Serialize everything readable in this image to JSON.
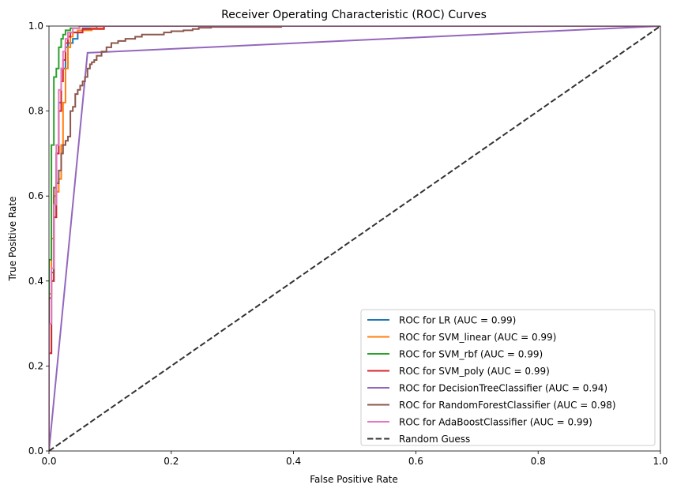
{
  "chart_data": {
    "type": "line",
    "title": "Receiver Operating Characteristic (ROC) Curves",
    "xlabel": "False Positive Rate",
    "ylabel": "True Positive Rate",
    "xlim": [
      0.0,
      1.0
    ],
    "ylim": [
      0.0,
      1.0
    ],
    "xticks": [
      "0.0",
      "0.2",
      "0.4",
      "0.6",
      "0.8",
      "1.0"
    ],
    "yticks": [
      "0.0",
      "0.2",
      "0.4",
      "0.6",
      "0.8",
      "1.0"
    ],
    "grid": false,
    "legend_position": "lower-right",
    "series": [
      {
        "name": "ROC for LR (AUC = 0.99)",
        "color": "#1f77b4",
        "style": "solid",
        "x": [
          0.0,
          0.0,
          0.004,
          0.004,
          0.008,
          0.008,
          0.012,
          0.012,
          0.016,
          0.016,
          0.02,
          0.02,
          0.027,
          0.027,
          0.031,
          0.031,
          0.039,
          0.039,
          0.047,
          0.047,
          0.055,
          0.055,
          0.078,
          0.078,
          1.0
        ],
        "y": [
          0.0,
          0.23,
          0.23,
          0.4,
          0.4,
          0.55,
          0.55,
          0.7,
          0.7,
          0.82,
          0.82,
          0.9,
          0.9,
          0.95,
          0.95,
          0.96,
          0.96,
          0.97,
          0.97,
          0.985,
          0.985,
          0.995,
          0.995,
          1.0,
          1.0
        ]
      },
      {
        "name": "ROC for SVM_linear (AUC = 0.99)",
        "color": "#ff7f0e",
        "style": "solid",
        "x": [
          0.0,
          0.0,
          0.004,
          0.004,
          0.008,
          0.008,
          0.012,
          0.012,
          0.016,
          0.016,
          0.02,
          0.02,
          0.023,
          0.023,
          0.027,
          0.027,
          0.031,
          0.031,
          0.035,
          0.035,
          0.039,
          0.039,
          0.047,
          0.047,
          0.07,
          0.07,
          0.09,
          0.09,
          1.0
        ],
        "y": [
          0.0,
          0.37,
          0.37,
          0.5,
          0.5,
          0.6,
          0.6,
          0.61,
          0.61,
          0.64,
          0.64,
          0.72,
          0.72,
          0.82,
          0.82,
          0.9,
          0.9,
          0.95,
          0.95,
          0.975,
          0.975,
          0.985,
          0.985,
          0.99,
          0.99,
          0.995,
          0.995,
          1.0,
          1.0
        ]
      },
      {
        "name": "ROC for SVM_rbf (AUC = 0.99)",
        "color": "#2ca02c",
        "style": "solid",
        "x": [
          0.0,
          0.0,
          0.004,
          0.004,
          0.008,
          0.008,
          0.012,
          0.012,
          0.016,
          0.016,
          0.02,
          0.02,
          0.023,
          0.023,
          0.027,
          0.027,
          0.035,
          0.035,
          0.05,
          0.05,
          1.0
        ],
        "y": [
          0.0,
          0.45,
          0.45,
          0.72,
          0.72,
          0.88,
          0.88,
          0.9,
          0.9,
          0.95,
          0.95,
          0.97,
          0.97,
          0.98,
          0.98,
          0.99,
          0.99,
          0.995,
          0.995,
          1.0,
          1.0
        ]
      },
      {
        "name": "ROC for SVM_poly (AUC = 0.99)",
        "color": "#d62728",
        "style": "solid",
        "x": [
          0.0,
          0.0,
          0.004,
          0.004,
          0.008,
          0.008,
          0.012,
          0.012,
          0.016,
          0.016,
          0.02,
          0.02,
          0.023,
          0.023,
          0.027,
          0.027,
          0.031,
          0.031,
          0.035,
          0.035,
          0.055,
          0.055,
          0.09,
          0.09,
          1.0
        ],
        "y": [
          0.0,
          0.23,
          0.23,
          0.4,
          0.4,
          0.55,
          0.55,
          0.7,
          0.7,
          0.8,
          0.8,
          0.87,
          0.87,
          0.92,
          0.92,
          0.96,
          0.96,
          0.975,
          0.975,
          0.985,
          0.985,
          0.993,
          0.993,
          1.0,
          1.0
        ]
      },
      {
        "name": "ROC for DecisionTreeClassifier (AUC = 0.94)",
        "color": "#9467bd",
        "style": "solid",
        "x": [
          0.0,
          0.063,
          1.0
        ],
        "y": [
          0.0,
          0.937,
          1.0
        ]
      },
      {
        "name": "ROC for RandomForestClassifier (AUC = 0.98)",
        "color": "#8c564b",
        "style": "solid",
        "x": [
          0.0,
          0.0,
          0.004,
          0.004,
          0.008,
          0.008,
          0.012,
          0.012,
          0.016,
          0.016,
          0.02,
          0.02,
          0.023,
          0.023,
          0.027,
          0.027,
          0.031,
          0.031,
          0.035,
          0.035,
          0.039,
          0.039,
          0.043,
          0.043,
          0.047,
          0.047,
          0.051,
          0.051,
          0.055,
          0.055,
          0.059,
          0.059,
          0.063,
          0.063,
          0.067,
          0.067,
          0.07,
          0.07,
          0.074,
          0.074,
          0.078,
          0.078,
          0.086,
          0.086,
          0.094,
          0.094,
          0.102,
          0.102,
          0.113,
          0.113,
          0.125,
          0.125,
          0.141,
          0.141,
          0.152,
          0.152,
          0.188,
          0.188,
          0.2,
          0.2,
          0.22,
          0.22,
          0.235,
          0.235,
          0.245,
          0.245,
          0.265,
          0.265,
          0.38,
          0.38,
          1.0
        ],
        "y": [
          0.0,
          0.36,
          0.36,
          0.42,
          0.42,
          0.62,
          0.62,
          0.63,
          0.63,
          0.66,
          0.66,
          0.7,
          0.7,
          0.72,
          0.72,
          0.73,
          0.73,
          0.74,
          0.74,
          0.8,
          0.8,
          0.81,
          0.81,
          0.84,
          0.84,
          0.85,
          0.85,
          0.86,
          0.86,
          0.87,
          0.87,
          0.88,
          0.88,
          0.9,
          0.9,
          0.91,
          0.91,
          0.915,
          0.915,
          0.92,
          0.92,
          0.93,
          0.93,
          0.94,
          0.94,
          0.95,
          0.95,
          0.96,
          0.96,
          0.965,
          0.965,
          0.97,
          0.97,
          0.975,
          0.975,
          0.98,
          0.98,
          0.985,
          0.985,
          0.988,
          0.988,
          0.99,
          0.99,
          0.993,
          0.993,
          0.996,
          0.996,
          0.998,
          0.998,
          1.0,
          1.0
        ]
      },
      {
        "name": "ROC for AdaBoostClassifier (AUC = 0.99)",
        "color": "#e377c2",
        "style": "solid",
        "x": [
          0.0,
          0.0,
          0.004,
          0.004,
          0.008,
          0.008,
          0.012,
          0.012,
          0.016,
          0.016,
          0.02,
          0.02,
          0.023,
          0.023,
          0.027,
          0.027,
          0.031,
          0.031,
          0.039,
          0.039,
          0.05,
          0.05,
          1.0
        ],
        "y": [
          0.0,
          0.3,
          0.3,
          0.43,
          0.43,
          0.58,
          0.58,
          0.72,
          0.72,
          0.85,
          0.85,
          0.9,
          0.9,
          0.94,
          0.94,
          0.97,
          0.97,
          0.985,
          0.985,
          0.995,
          0.995,
          1.0,
          1.0
        ]
      },
      {
        "name": "Random Guess",
        "color": "#333333",
        "style": "dashed",
        "x": [
          0.0,
          1.0
        ],
        "y": [
          0.0,
          1.0
        ]
      }
    ]
  }
}
